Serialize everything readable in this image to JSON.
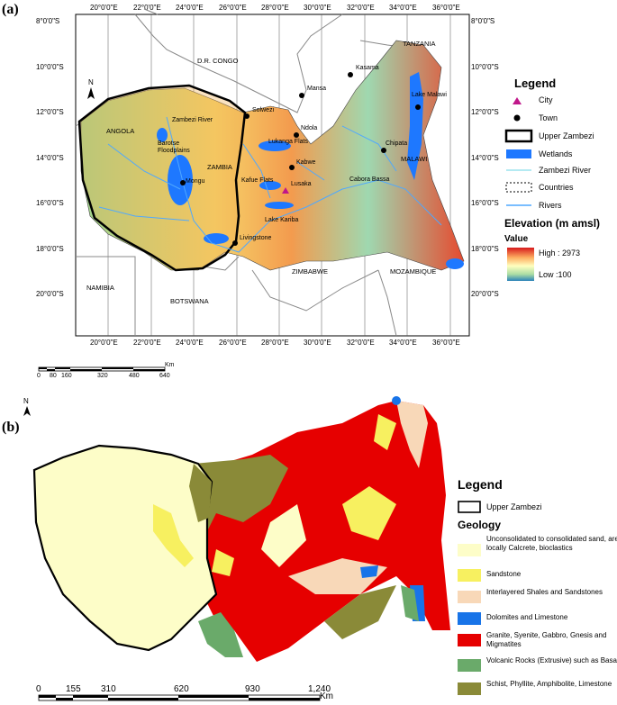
{
  "panel_a": {
    "label": "(a)",
    "lon_ticks": [
      "20°0'0\"E",
      "22°0'0\"E",
      "24°0'0\"E",
      "26°0'0\"E",
      "28°0'0\"E",
      "30°0'0\"E",
      "32°0'0\"E",
      "34°0'0\"E",
      "36°0'0\"E"
    ],
    "lat_ticks": [
      "8°0'0\"S",
      "10°0'0\"S",
      "12°0'0\"S",
      "14°0'0\"S",
      "16°0'0\"S",
      "18°0'0\"S",
      "20°0'0\"S"
    ],
    "north": "N",
    "countries": [
      "D.R. CONGO",
      "TANZANIA",
      "ANGOLA",
      "ZAMBIA",
      "MALAWI",
      "NAMIBIA",
      "BOTSWANA",
      "ZIMBABWE",
      "MOZAMBIQUE"
    ],
    "places": {
      "zambezi_river": "Zambezi River",
      "barotse": "Barotse\nFloodplains",
      "mongu": "Mongu",
      "solwezi": "Solwezi",
      "mansa": "Mansa",
      "kasama": "Kasama",
      "ndola": "Ndola",
      "lukanga": "Lukanga Flats",
      "kabwe": "Kabwe",
      "kafue": "Kafue Flats",
      "lusaka": "Lusaka",
      "lake_kariba": "Lake Kariba",
      "livingstone": "Livingstone",
      "lake_malawi": "Lake Malawi",
      "chipata": "Chipata",
      "cabora": "Cabora Bassa"
    },
    "legend": {
      "title": "Legend",
      "items": [
        "City",
        "Town",
        "Upper Zambezi",
        "Wetlands",
        "Zambezi River",
        "Countries",
        "Rivers"
      ],
      "elevation_title": "Elevation (m amsl)",
      "value_label": "Value",
      "high": "High : 2973",
      "low": "Low :100"
    },
    "scale": {
      "ticks": [
        "0",
        "80",
        "160",
        "320",
        "480",
        "640"
      ],
      "unit": "Km"
    }
  },
  "panel_b": {
    "label": "(b)",
    "north": "N",
    "legend": {
      "title": "Legend",
      "upper": "Upper Zambezi",
      "geology_title": "Geology",
      "items": [
        {
          "label": "Unconsolidated to consolidated sand, arenites, locally Calcrete, bioclastics",
          "color": "#fdfdc8"
        },
        {
          "label": "Sandstone",
          "color": "#f7f060"
        },
        {
          "label": "Interlayered Shales and Sandstones",
          "color": "#f8d8b8"
        },
        {
          "label": "Dolomites and Limestone",
          "color": "#1874e8"
        },
        {
          "label": "Granite, Syenite, Gabbro, Gnesis and Migmatites",
          "color": "#e60000"
        },
        {
          "label": "Volcanic Rocks (Extrusive) such as Basalt",
          "color": "#6aaa6a"
        },
        {
          "label": "Schist, Phyllite, Amphibolite, Limestone",
          "color": "#8a8a38"
        }
      ]
    },
    "scale": {
      "ticks": [
        "0",
        "155",
        "310",
        "620",
        "930",
        "1,240"
      ],
      "unit": "Km"
    }
  },
  "colors": {
    "wetland": "#1e78ff",
    "city": "#c0178a",
    "elev_high": "#d7191c",
    "elev_mid": "#ffffbf",
    "elev_low": "#2b83ba"
  }
}
